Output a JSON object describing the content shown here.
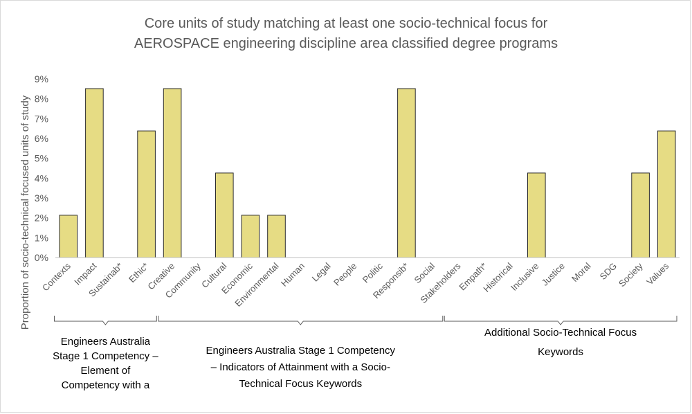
{
  "chart_data": {
    "type": "bar",
    "title": [
      "Core units of study matching at least one socio-technical focus for",
      "AEROSPACE engineering discipline area classified degree programs"
    ],
    "ylabel": "Proportion of socio-technical focused units of study",
    "xlabel": "",
    "ylim": [
      0,
      9
    ],
    "y_ticks": [
      "0%",
      "1%",
      "2%",
      "3%",
      "4%",
      "5%",
      "6%",
      "7%",
      "8%",
      "9%"
    ],
    "grid": false,
    "legend": "none",
    "colors": {
      "bar_fill": "#E6DC84",
      "bar_stroke": "#2B2B2B",
      "text": "#595959"
    },
    "categories": [
      "Contexts",
      "Impact",
      "Sustainab*",
      "Ethic*",
      "Creative",
      "Community",
      "Cultural",
      "Economic",
      "Environmental",
      "Human",
      "Legal",
      "People",
      "Politic",
      "Responsib*",
      "Social",
      "Stakeholders",
      "Empath*",
      "Historical",
      "Inclusive",
      "Justice",
      "Moral",
      "SDG",
      "Society",
      "Values"
    ],
    "values": [
      2.13,
      8.51,
      0,
      6.38,
      8.51,
      0,
      4.26,
      2.13,
      2.13,
      0,
      0,
      0,
      0,
      8.51,
      0,
      0,
      0,
      0,
      4.26,
      0,
      0,
      0,
      4.26,
      6.38
    ],
    "groups": [
      {
        "name": "ea-elements",
        "lines": [
          "Engineers Australia",
          "Stage 1 Competency –",
          "Element of",
          "Competency with a"
        ],
        "first": 0,
        "last": 3
      },
      {
        "name": "ea-indicators",
        "lines": [
          "Engineers Australia Stage 1 Competency",
          "– Indicators of Attainment with a Socio-",
          "Technical Focus Keywords"
        ],
        "first": 4,
        "last": 14
      },
      {
        "name": "additional-keywords",
        "lines": [
          "Additional Socio-Technical Focus",
          "Keywords"
        ],
        "first": 15,
        "last": 23
      }
    ]
  }
}
